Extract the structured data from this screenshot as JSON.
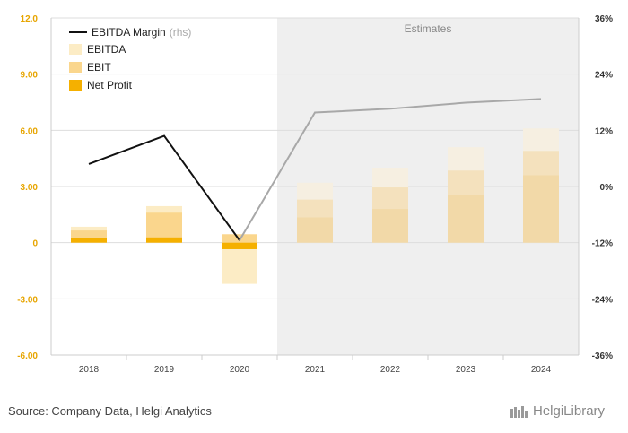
{
  "chart_data": {
    "type": "bar",
    "categories": [
      "2018",
      "2019",
      "2020",
      "2021",
      "2022",
      "2023",
      "2024"
    ],
    "estimates_from_index": 3,
    "estimates_label": "Estimates",
    "y_left": {
      "ylim": [
        -6.0,
        12.0
      ],
      "ticks": [
        12.0,
        9.0,
        6.0,
        3.0,
        0.0,
        -3.0,
        -6.0
      ],
      "tick_labels": [
        "12.0",
        "9.00",
        "6.00",
        "3.00",
        "0",
        "-3.00",
        "-6.00"
      ]
    },
    "y_right": {
      "ylim": [
        -36,
        36
      ],
      "ticks": [
        36,
        24,
        12,
        0,
        -12,
        -24,
        -36
      ],
      "tick_labels": [
        "36%",
        "24%",
        "12%",
        "0%",
        "-12%",
        "-24%",
        "-36%"
      ]
    },
    "series": [
      {
        "name": "EBITDA",
        "type": "bar",
        "axis": "left",
        "values": [
          0.85,
          1.95,
          -2.2,
          3.2,
          4.0,
          5.1,
          6.1
        ]
      },
      {
        "name": "EBIT",
        "type": "bar",
        "axis": "left",
        "values": [
          0.65,
          1.6,
          0.45,
          2.3,
          2.95,
          3.85,
          4.9
        ]
      },
      {
        "name": "Net Profit",
        "type": "bar",
        "axis": "left",
        "values": [
          0.25,
          0.28,
          -0.35,
          1.35,
          1.8,
          2.55,
          3.6
        ]
      },
      {
        "name": "EBITDA Margin",
        "name_suffix": "(rhs)",
        "type": "line",
        "axis": "right",
        "values": [
          4.8,
          10.8,
          -11.5,
          15.8,
          16.6,
          17.9,
          18.7
        ]
      }
    ],
    "legend": {
      "placement": "top-left",
      "order": [
        "EBITDA Margin",
        "EBITDA",
        "EBIT",
        "Net Profit"
      ]
    },
    "grid": true
  },
  "footer": {
    "source": "Source: Company Data, Helgi Analytics",
    "brand": "HelgiLibrary"
  },
  "colors": {
    "ebitda": "#fcecc5",
    "ebit": "#fad68d",
    "net_profit": "#f5b000",
    "ebitda_est": "#f6efe1",
    "ebit_est": "#f4e1bd",
    "net_profit_est": "#f2d9a8",
    "margin_line": "#111111",
    "margin_line_est": "#a8a8a8",
    "estimates_bg": "#efefef"
  }
}
